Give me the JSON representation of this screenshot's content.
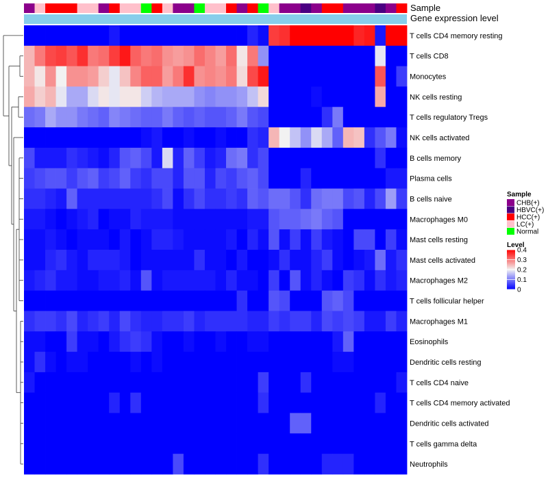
{
  "chart_data": {
    "type": "heatmap",
    "title": "",
    "row_labels": [
      "T cells CD4 memory resting",
      "T cells CD8",
      "Monocytes",
      "NK cells resting",
      "T cells regulatory  Tregs",
      "NK cells activated",
      "B cells memory",
      "Plasma cells",
      "B cells naive",
      "Macrophages M0",
      "Mast cells resting",
      "Mast cells activated",
      "Macrophages M2",
      "T cells follicular helper",
      "Macrophages M1",
      "Eosinophils",
      "Dendritic cells resting",
      "T cells CD4 naive",
      "T cells CD4 memory activated",
      "Dendritic cells activated",
      "T cells gamma delta",
      "Neutrophils"
    ],
    "column_annotation_labels": [
      "Sample",
      "Gene expression level"
    ],
    "samples": [
      "CHB(+)",
      "LC(+)",
      "HCC(+)",
      "HCC(+)",
      "HCC(+)",
      "LC(+)",
      "LC(+)",
      "CHB(+)",
      "HCC(+)",
      "LC(+)",
      "LC(+)",
      "Normal",
      "HCC(+)",
      "LC(+)",
      "CHB(+)",
      "CHB(+)",
      "Normal",
      "LC(+)",
      "LC(+)",
      "HCC(+)",
      "CHB(+)",
      "HCC(+)",
      "Normal",
      "LC(+)",
      "CHB(+)",
      "CHB(+)",
      "HBVC(+)",
      "CHB(+)",
      "HCC(+)",
      "HCC(+)",
      "CHB(+)",
      "CHB(+)",
      "CHB(+)",
      "HBVC(+)",
      "CHB(+)",
      "HCC(+)"
    ],
    "values": [
      [
        0,
        0,
        0,
        0,
        0,
        0,
        0,
        0,
        0.02,
        0,
        0,
        0,
        0,
        0,
        0,
        0,
        0,
        0,
        0,
        0,
        0,
        0.03,
        0.01,
        0.35,
        0.36,
        0.4,
        0.4,
        0.4,
        0.4,
        0.4,
        0.4,
        0.37,
        0.38,
        0.02,
        0.4,
        0.4
      ],
      [
        0.25,
        0.3,
        0.34,
        0.35,
        0.33,
        0.36,
        0.3,
        0.31,
        0.35,
        0.38,
        0.32,
        0.3,
        0.31,
        0.28,
        0.27,
        0.28,
        0.31,
        0.29,
        0.27,
        0.31,
        0.21,
        0.3,
        0.12,
        0,
        0,
        0,
        0,
        0,
        0,
        0,
        0,
        0,
        0,
        0.19,
        0,
        0
      ],
      [
        0.25,
        0.21,
        0.28,
        0.2,
        0.28,
        0.28,
        0.27,
        0.23,
        0.19,
        0.24,
        0.29,
        0.32,
        0.32,
        0.27,
        0.3,
        0.36,
        0.28,
        0.29,
        0.28,
        0.3,
        0.22,
        0.34,
        0.38,
        0,
        0,
        0,
        0,
        0,
        0,
        0,
        0,
        0,
        0,
        0.33,
        0,
        0.05
      ],
      [
        0.26,
        0.23,
        0.25,
        0.19,
        0.14,
        0.14,
        0.18,
        0.21,
        0.19,
        0.21,
        0.21,
        0.17,
        0.15,
        0.14,
        0.14,
        0.14,
        0.12,
        0.11,
        0.12,
        0.12,
        0.13,
        0.16,
        0.22,
        0,
        0,
        0,
        0,
        0.01,
        0,
        0,
        0,
        0,
        0,
        0.26,
        0,
        0
      ],
      [
        0.09,
        0.1,
        0.14,
        0.12,
        0.12,
        0.1,
        0.09,
        0.08,
        0.11,
        0.1,
        0.09,
        0.08,
        0.08,
        0.1,
        0.08,
        0.07,
        0.08,
        0.07,
        0.07,
        0.08,
        0.1,
        0.07,
        0.06,
        0,
        0,
        0,
        0,
        0,
        0.04,
        0.1,
        0,
        0,
        0,
        0,
        0,
        0
      ],
      [
        0,
        0,
        0,
        0,
        0,
        0,
        0,
        0,
        0,
        0,
        0,
        0.01,
        0.02,
        0,
        0,
        0.01,
        0,
        0,
        0.01,
        0,
        0,
        0.04,
        0.03,
        0.25,
        0.2,
        0.16,
        0.12,
        0.18,
        0.14,
        0.08,
        0.25,
        0.24,
        0.04,
        0.07,
        0.1,
        0.01
      ],
      [
        0.06,
        0.02,
        0.02,
        0.02,
        0.04,
        0.03,
        0.02,
        0.01,
        0.03,
        0.07,
        0.08,
        0.06,
        0.02,
        0.18,
        0.03,
        0.08,
        0.05,
        0.02,
        0.03,
        0.09,
        0.1,
        0.04,
        0.06,
        0,
        0,
        0,
        0,
        0,
        0,
        0,
        0,
        0,
        0,
        0.04,
        0,
        0
      ],
      [
        0.05,
        0.06,
        0.07,
        0.07,
        0.05,
        0.07,
        0.08,
        0.05,
        0.06,
        0.08,
        0.05,
        0.04,
        0.06,
        0.06,
        0.03,
        0.07,
        0.07,
        0.03,
        0.06,
        0.05,
        0.07,
        0.08,
        0.06,
        0,
        0,
        0,
        0.03,
        0,
        0,
        0,
        0,
        0,
        0,
        0,
        0.02,
        0.02
      ],
      [
        0.04,
        0.04,
        0.03,
        0.02,
        0.08,
        0.03,
        0.03,
        0.03,
        0.03,
        0.03,
        0.03,
        0.03,
        0.04,
        0.06,
        0.01,
        0.04,
        0.06,
        0.04,
        0.04,
        0.05,
        0.04,
        0.08,
        0.07,
        0.09,
        0.09,
        0.07,
        0.04,
        0.09,
        0.1,
        0.1,
        0.06,
        0.07,
        0.03,
        0.06,
        0.13,
        0.05
      ],
      [
        0.02,
        0.02,
        0.01,
        0,
        0.01,
        0.02,
        0.03,
        0,
        0.01,
        0.01,
        0.03,
        0.02,
        0.02,
        0.02,
        0.01,
        0.01,
        0.01,
        0.01,
        0.01,
        0.01,
        0.01,
        0.02,
        0.02,
        0.07,
        0.08,
        0.08,
        0.09,
        0.1,
        0.08,
        0.07,
        0,
        0,
        0,
        0,
        0,
        0
      ],
      [
        0.01,
        0.01,
        0.02,
        0.01,
        0,
        0.01,
        0.01,
        0.01,
        0,
        0.02,
        0,
        0.01,
        0.03,
        0.03,
        0.02,
        0.01,
        0.01,
        0.01,
        0.01,
        0.02,
        0,
        0.03,
        0.01,
        0.07,
        0.01,
        0.05,
        0.01,
        0.05,
        0.02,
        0.01,
        0,
        0.06,
        0.06,
        0,
        0.05,
        0.01
      ],
      [
        0.01,
        0.01,
        0.03,
        0.04,
        0.02,
        0.01,
        0.03,
        0.03,
        0.03,
        0.02,
        0,
        0.01,
        0.01,
        0.01,
        0.01,
        0.01,
        0.04,
        0.01,
        0.01,
        0,
        0.02,
        0,
        0,
        0.01,
        0.04,
        0.01,
        0.01,
        0.03,
        0.05,
        0.01,
        0,
        0.01,
        0.02,
        0.09,
        0.02,
        0.04
      ],
      [
        0.02,
        0.03,
        0.04,
        0.02,
        0.02,
        0.01,
        0.01,
        0.02,
        0.02,
        0.03,
        0.01,
        0.07,
        0.01,
        0.02,
        0.02,
        0.02,
        0.02,
        0.02,
        0.01,
        0.03,
        0.01,
        0.01,
        0,
        0.05,
        0,
        0.07,
        0.01,
        0.03,
        0.01,
        0,
        0.05,
        0.04,
        0.01,
        0.04,
        0.02,
        0.03
      ],
      [
        0,
        0,
        0,
        0,
        0,
        0,
        0,
        0,
        0,
        0,
        0,
        0,
        0,
        0,
        0,
        0,
        0,
        0,
        0,
        0,
        0.04,
        0,
        0,
        0.07,
        0.06,
        0,
        0,
        0,
        0.07,
        0.08,
        0.06,
        0,
        0,
        0,
        0,
        0
      ],
      [
        0.04,
        0.05,
        0.05,
        0.04,
        0.06,
        0.03,
        0.04,
        0.05,
        0.03,
        0.06,
        0.04,
        0.03,
        0.03,
        0.04,
        0.04,
        0.05,
        0.03,
        0.04,
        0.04,
        0.04,
        0.04,
        0.03,
        0.03,
        0.05,
        0.04,
        0.05,
        0.05,
        0.03,
        0.06,
        0.05,
        0.06,
        0.05,
        0.02,
        0.02,
        0.05,
        0.03
      ],
      [
        0.01,
        0.01,
        0,
        0,
        0.05,
        0.01,
        0.01,
        0,
        0.02,
        0.04,
        0.05,
        0.04,
        0.01,
        0,
        0,
        0.01,
        0,
        0,
        0.01,
        0,
        0,
        0.01,
        0.01,
        0,
        0,
        0,
        0,
        0,
        0,
        0.02,
        0.08,
        0,
        0,
        0,
        0,
        0
      ],
      [
        0.01,
        0.04,
        0.01,
        0,
        0.01,
        0.01,
        0,
        0,
        0,
        0,
        0.01,
        0,
        0.01,
        0,
        0,
        0,
        0,
        0,
        0,
        0,
        0,
        0,
        0,
        0,
        0,
        0,
        0,
        0,
        0,
        0.01,
        0.01,
        0,
        0,
        0,
        0,
        0
      ],
      [
        0.02,
        0,
        0,
        0,
        0,
        0,
        0,
        0,
        0,
        0,
        0,
        0,
        0,
        0,
        0,
        0,
        0,
        0,
        0,
        0,
        0,
        0,
        0.05,
        0,
        0,
        0,
        0.04,
        0,
        0,
        0,
        0,
        0,
        0,
        0,
        0,
        0.02
      ],
      [
        0,
        0,
        0,
        0,
        0,
        0,
        0,
        0,
        0.03,
        0,
        0.04,
        0,
        0,
        0,
        0,
        0,
        0,
        0,
        0,
        0,
        0,
        0,
        0.04,
        0,
        0,
        0,
        0,
        0,
        0,
        0,
        0,
        0,
        0,
        0.03,
        0,
        0
      ],
      [
        0,
        0,
        0,
        0,
        0,
        0,
        0,
        0,
        0,
        0,
        0,
        0,
        0,
        0,
        0,
        0,
        0,
        0,
        0,
        0,
        0,
        0,
        0,
        0,
        0,
        0.08,
        0.08,
        0,
        0,
        0,
        0,
        0,
        0,
        0,
        0,
        0
      ],
      [
        0,
        0,
        0,
        0,
        0,
        0,
        0,
        0,
        0,
        0,
        0,
        0,
        0,
        0,
        0,
        0,
        0,
        0,
        0,
        0,
        0,
        0,
        0,
        0,
        0,
        0,
        0,
        0,
        0,
        0,
        0,
        0,
        0,
        0,
        0,
        0
      ],
      [
        0,
        0,
        0,
        0,
        0,
        0,
        0,
        0,
        0,
        0,
        0,
        0,
        0,
        0,
        0.06,
        0,
        0,
        0,
        0,
        0,
        0,
        0,
        0.04,
        0,
        0,
        0,
        0,
        0,
        0.03,
        0.03,
        0.03,
        0,
        0,
        0,
        0,
        0
      ]
    ],
    "color_scale": {
      "min": 0,
      "mid": 0.2,
      "max": 0.4,
      "low_color": "#0000ff",
      "mid_color": "#f2f2f2",
      "high_color": "#ff0000"
    },
    "legend": {
      "sample_title": "Sample",
      "sample_items": [
        {
          "label": "CHB(+)",
          "color": "#8b008b"
        },
        {
          "label": "HBVC(+)",
          "color": "#4b0082"
        },
        {
          "label": "HCC(+)",
          "color": "#ff0000"
        },
        {
          "label": "LC(+)",
          "color": "#ffc0cb"
        },
        {
          "label": "Normal",
          "color": "#00ff00"
        }
      ],
      "level_title": "Level",
      "level_ticks": [
        "0.4",
        "0.3",
        "0.2",
        "0.1",
        "0"
      ],
      "level_tick_values": [
        0.4,
        0.3,
        0.2,
        0.1,
        0
      ],
      "placement": "right"
    },
    "gene_expression_bar_color": "#87ceeb"
  }
}
